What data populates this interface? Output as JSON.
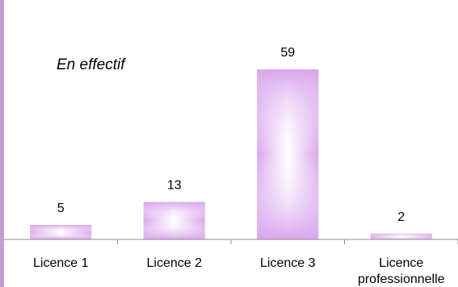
{
  "chart_data": {
    "type": "bar",
    "categories": [
      "Licence 1",
      "Licence 2",
      "Licence 3",
      "Licence professionnelle"
    ],
    "category_lines": [
      [
        "Licence 1"
      ],
      [
        "Licence 2"
      ],
      [
        "Licence 3"
      ],
      [
        "Licence",
        "professionnelle"
      ]
    ],
    "values": [
      5,
      13,
      59,
      2
    ],
    "annotation": "En effectif",
    "title": "",
    "xlabel": "",
    "ylabel": "",
    "ylim": [
      0,
      59
    ],
    "grid": false,
    "legend": "none",
    "colors": {
      "bar_edge": "#d9a6ec",
      "bar_center": "#ffffff",
      "accent": "#c79ad6",
      "axis": "#8c8c8c"
    }
  }
}
